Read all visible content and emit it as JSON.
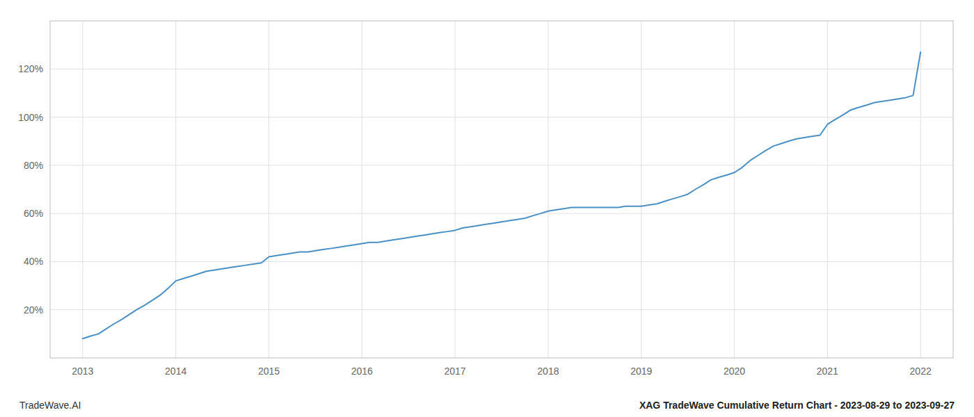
{
  "chart_data": {
    "type": "line",
    "color": "#4a90c4",
    "grid": true,
    "annotations": [
      "TradeWave.AI",
      "XAG TradeWave Cumulative Return Chart - 2023-08-29 to 2023-09-27"
    ],
    "xlim": [
      2012.65,
      2022.35
    ],
    "ylim": [
      0,
      140
    ],
    "xticks": [
      2013,
      2014,
      2015,
      2016,
      2017,
      2018,
      2019,
      2020,
      2021,
      2022
    ],
    "yticks": [
      {
        "value": 20,
        "label": "20%"
      },
      {
        "value": 40,
        "label": "40%"
      },
      {
        "value": 60,
        "label": "60%"
      },
      {
        "value": 80,
        "label": "80%"
      },
      {
        "value": 100,
        "label": "100%"
      },
      {
        "value": 120,
        "label": "120%"
      }
    ],
    "x": [
      2013.0,
      2013.08,
      2013.17,
      2013.25,
      2013.33,
      2013.42,
      2013.5,
      2013.58,
      2013.67,
      2013.75,
      2013.83,
      2013.92,
      2014.0,
      2014.08,
      2014.17,
      2014.25,
      2014.33,
      2014.42,
      2014.5,
      2014.58,
      2014.67,
      2014.75,
      2014.83,
      2014.92,
      2015.0,
      2015.08,
      2015.17,
      2015.25,
      2015.33,
      2015.42,
      2015.5,
      2015.58,
      2015.67,
      2015.75,
      2015.83,
      2015.92,
      2016.0,
      2016.08,
      2016.17,
      2016.25,
      2016.33,
      2016.42,
      2016.5,
      2016.58,
      2016.67,
      2016.75,
      2016.83,
      2016.92,
      2017.0,
      2017.08,
      2017.17,
      2017.25,
      2017.33,
      2017.42,
      2017.5,
      2017.58,
      2017.67,
      2017.75,
      2017.83,
      2017.92,
      2018.0,
      2018.08,
      2018.17,
      2018.25,
      2018.33,
      2018.42,
      2018.5,
      2018.58,
      2018.67,
      2018.75,
      2018.83,
      2018.92,
      2019.0,
      2019.08,
      2019.17,
      2019.25,
      2019.33,
      2019.42,
      2019.5,
      2019.58,
      2019.67,
      2019.75,
      2019.83,
      2019.92,
      2020.0,
      2020.08,
      2020.17,
      2020.25,
      2020.33,
      2020.42,
      2020.5,
      2020.58,
      2020.67,
      2020.75,
      2020.83,
      2020.92,
      2021.0,
      2021.08,
      2021.17,
      2021.25,
      2021.33,
      2021.42,
      2021.5,
      2021.58,
      2021.67,
      2021.75,
      2021.83,
      2021.92,
      2022.0
    ],
    "values": [
      8,
      9,
      10,
      12,
      14,
      16,
      18,
      20,
      22,
      24,
      26,
      29,
      32,
      33,
      34,
      35,
      36,
      36.5,
      37,
      37.5,
      38,
      38.5,
      39,
      39.5,
      42,
      42.5,
      43,
      43.5,
      44,
      44,
      44.5,
      45,
      45.5,
      46,
      46.5,
      47,
      47.5,
      48,
      48,
      48.5,
      49,
      49.5,
      50,
      50.5,
      51,
      51.5,
      52,
      52.5,
      53,
      54,
      54.5,
      55,
      55.5,
      56,
      56.5,
      57,
      57.5,
      58,
      59,
      60,
      61,
      61.5,
      62,
      62.5,
      62.5,
      62.5,
      62.5,
      62.5,
      62.5,
      62.5,
      63,
      63,
      63,
      63.5,
      64,
      65,
      66,
      67,
      68,
      70,
      72,
      74,
      75,
      76,
      77,
      79,
      82,
      84,
      86,
      88,
      89,
      90,
      91,
      91.5,
      92,
      92.5,
      97,
      99,
      101,
      103,
      104,
      105,
      106,
      106.5,
      107,
      107.5,
      108,
      109,
      127
    ]
  }
}
